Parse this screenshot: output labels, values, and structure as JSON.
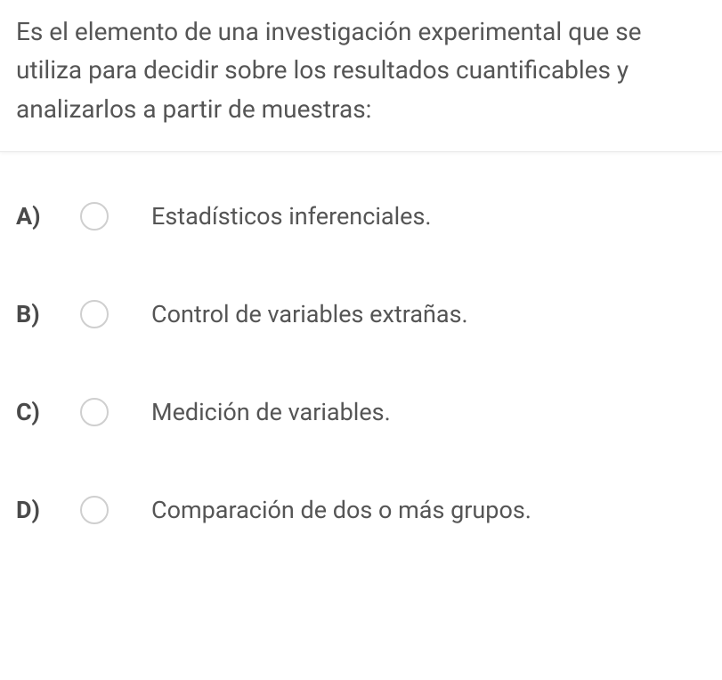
{
  "question": {
    "text": "Es el elemento de una investigación experimental que se utiliza para decidir sobre los resultados cuantificables y analizarlos a partir de muestras:"
  },
  "options": [
    {
      "letter": "A)",
      "text": "Estadísticos inferenciales."
    },
    {
      "letter": "B)",
      "text": "Control de variables extrañas."
    },
    {
      "letter": "C)",
      "text": "Medición de variables."
    },
    {
      "letter": "D)",
      "text": "Comparación de dos o más grupos."
    }
  ],
  "style": {
    "text_color": "#555555",
    "letter_color": "#4a4a4a",
    "radio_border": "#cfcfcf",
    "divider_color": "#e8e8e8",
    "background": "#ffffff",
    "question_fontsize": 28,
    "option_fontsize": 27
  }
}
